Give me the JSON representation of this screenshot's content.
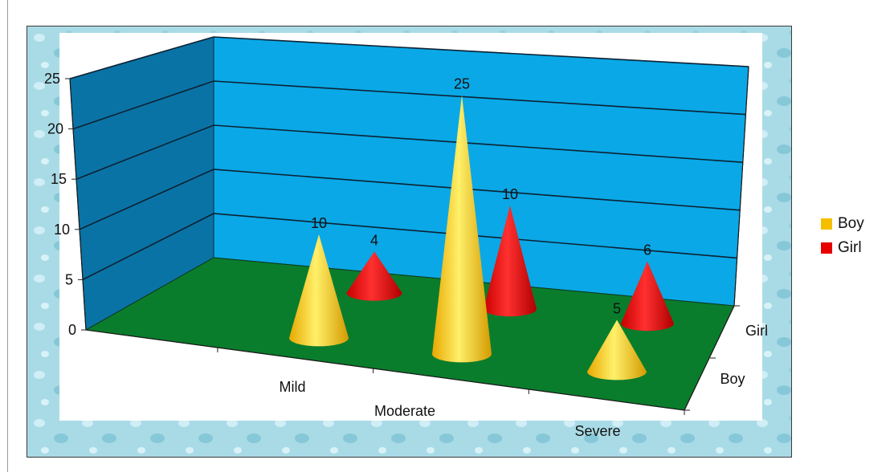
{
  "chart_data": {
    "type": "bar",
    "subtype": "3d-cone",
    "categories": [
      "Mild",
      "Moderate",
      "Severe"
    ],
    "series": [
      {
        "name": "Boy",
        "values": [
          10,
          25,
          5
        ],
        "color": "#f5bf00"
      },
      {
        "name": "Girl",
        "values": [
          4,
          10,
          6
        ],
        "color": "#e60000"
      }
    ],
    "depth_labels": [
      "Boy",
      "Girl"
    ],
    "ylim": [
      0,
      25
    ],
    "yticks": [
      0,
      5,
      10,
      15,
      20,
      25
    ],
    "grid": true,
    "legend": "right",
    "colors": {
      "walls": "#0aa8e6",
      "side_wall": "#0a73a5",
      "floor": "#0a7d2c",
      "backdrop": "#a8dbe8"
    }
  }
}
